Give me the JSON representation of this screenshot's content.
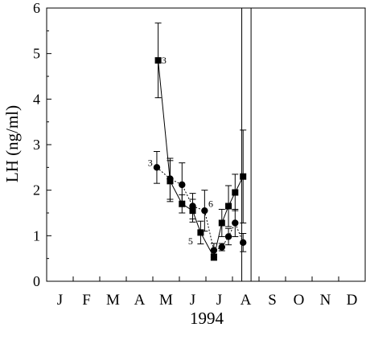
{
  "chart_data": {
    "type": "line",
    "title": "",
    "xlabel": "1994",
    "ylabel": "LH (ng/ml)",
    "ylim": [
      0,
      6
    ],
    "xlim": [
      0,
      12
    ],
    "yticks": [
      0,
      1,
      2,
      3,
      4,
      5,
      6
    ],
    "month_labels": [
      "J",
      "F",
      "M",
      "A",
      "M",
      "J",
      "J",
      "A",
      "S",
      "O",
      "N",
      "D"
    ],
    "grid": false,
    "legend": "none",
    "vertical_lines": [
      7.35,
      7.7
    ],
    "series": [
      {
        "marker": "square",
        "line_style": "solid",
        "x": [
          4.2,
          4.65,
          5.1,
          5.5,
          5.8,
          6.3,
          6.6,
          6.85,
          7.1,
          7.4
        ],
        "y": [
          4.85,
          2.2,
          1.7,
          1.55,
          1.07,
          0.53,
          1.28,
          1.65,
          1.95,
          2.3
        ],
        "err": [
          0.82,
          0.45,
          0.2,
          0.25,
          0.25,
          0.07,
          0.3,
          0.45,
          0.4,
          1.02
        ]
      },
      {
        "marker": "circle",
        "line_style": "dotted",
        "x": [
          4.15,
          4.65,
          5.1,
          5.5,
          5.95,
          6.3,
          6.6,
          6.85,
          7.1,
          7.4
        ],
        "y": [
          2.5,
          2.25,
          2.12,
          1.65,
          1.55,
          0.68,
          0.75,
          0.98,
          1.28,
          0.85
        ],
        "err": [
          0.35,
          0.45,
          0.48,
          0.28,
          0.45,
          0.15,
          0.08,
          0.18,
          0.3,
          0.2
        ]
      }
    ],
    "annotations": [
      {
        "text": "3",
        "x": 4.42,
        "y": 4.85
      },
      {
        "text": "3",
        "x": 3.9,
        "y": 2.6
      },
      {
        "text": "6",
        "x": 6.18,
        "y": 1.7
      },
      {
        "text": "5",
        "x": 5.42,
        "y": 0.88
      }
    ]
  }
}
